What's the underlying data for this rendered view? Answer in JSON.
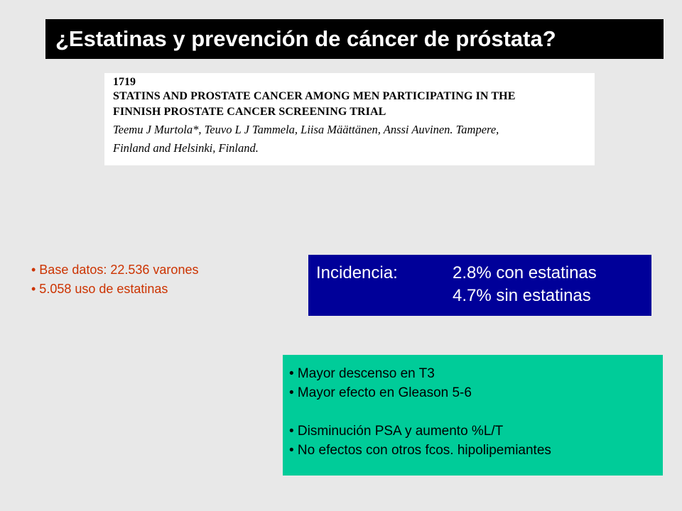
{
  "slide": {
    "title": "¿Estatinas y prevención de cáncer de próstata?"
  },
  "abstract": {
    "number": "1719",
    "heading_line1": "STATINS AND PROSTATE CANCER AMONG MEN PARTICIPATING IN THE",
    "heading_line2": "FINNISH PROSTATE CANCER SCREENING TRIAL",
    "authors_line1": "Teemu J Murtola*, Teuvo L J Tammela, Liisa Määttänen, Anssi Auvinen. Tampere,",
    "authors_line2": "Finland and Helsinki, Finland."
  },
  "study_facts": [
    "• Base datos: 22.536 varones",
    "• 5.058 uso de estatinas"
  ],
  "incidence": {
    "label": "Incidencia:",
    "with_statins": "2.8% con estatinas",
    "without_statins": "4.7% sin estatinas"
  },
  "findings": [
    "• Mayor descenso en T3",
    "• Mayor efecto en Gleason 5-6",
    "• Disminución PSA y aumento %L/T",
    "• No efectos con otros fcos. hipolipemiantes"
  ],
  "colors": {
    "background": "#e8e8e8",
    "title_bg": "#000000",
    "incidence_bg": "#000099",
    "findings_bg": "#00cc99",
    "facts_text": "#cc3300"
  }
}
